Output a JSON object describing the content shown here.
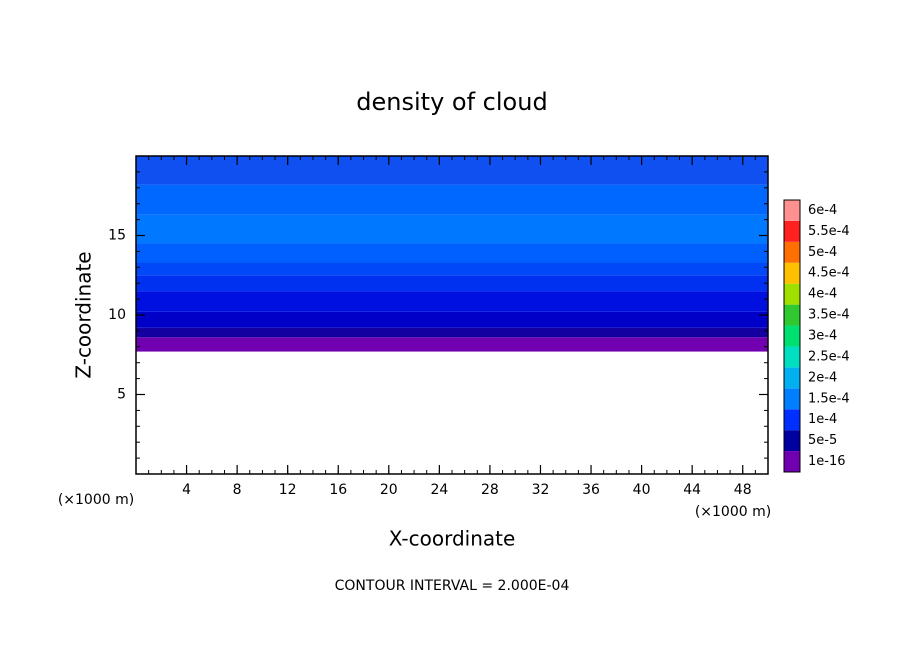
{
  "chart_data": {
    "type": "contour",
    "title": "density of cloud",
    "xlabel": "X-coordinate",
    "ylabel": "Z-coordinate",
    "x_unit_left": "(×1000 m)",
    "x_unit_right": "(×1000 m)",
    "annotation": "CONTOUR INTERVAL = 2.000E-04",
    "xlim": [
      0,
      50
    ],
    "xticks": [
      4,
      8,
      12,
      16,
      20,
      24,
      28,
      32,
      36,
      40,
      44,
      48
    ],
    "ylim": [
      0,
      20
    ],
    "yticks": [
      5,
      10,
      15
    ],
    "field": [
      {
        "z": [
          7.7,
          8.6
        ],
        "color": "#7000b0"
      },
      {
        "z": [
          8.6,
          9.2
        ],
        "color": "#1400a0"
      },
      {
        "z": [
          9.2,
          10.2
        ],
        "color": "#0000c8"
      },
      {
        "z": [
          10.2,
          11.5
        ],
        "color": "#0010e0"
      },
      {
        "z": [
          11.5,
          12.5
        ],
        "color": "#0030f0"
      },
      {
        "z": [
          12.5,
          13.3
        ],
        "color": "#0048f8"
      },
      {
        "z": [
          13.3,
          14.5
        ],
        "color": "#0060ff"
      },
      {
        "z": [
          14.5,
          16.3
        ],
        "color": "#0078ff"
      },
      {
        "z": [
          16.3,
          18.2
        ],
        "color": "#0068ff"
      },
      {
        "z": [
          18.2,
          20
        ],
        "color": "#1050f0"
      }
    ],
    "colorbar": [
      {
        "label": "1e-16",
        "color": "#7000b0"
      },
      {
        "label": "5e-5",
        "color": "#0000a0"
      },
      {
        "label": "1e-4",
        "color": "#0030ff"
      },
      {
        "label": "1.5e-4",
        "color": "#0080ff"
      },
      {
        "label": "2e-4",
        "color": "#00b0f0"
      },
      {
        "label": "2.5e-4",
        "color": "#00e0c0"
      },
      {
        "label": "3e-4",
        "color": "#00e070"
      },
      {
        "label": "3.5e-4",
        "color": "#30c830"
      },
      {
        "label": "4e-4",
        "color": "#a0e000"
      },
      {
        "label": "4.5e-4",
        "color": "#ffc000"
      },
      {
        "label": "5e-4",
        "color": "#ff7000"
      },
      {
        "label": "5.5e-4",
        "color": "#ff2020"
      },
      {
        "label": "6e-4",
        "color": "#ff9090"
      }
    ]
  }
}
